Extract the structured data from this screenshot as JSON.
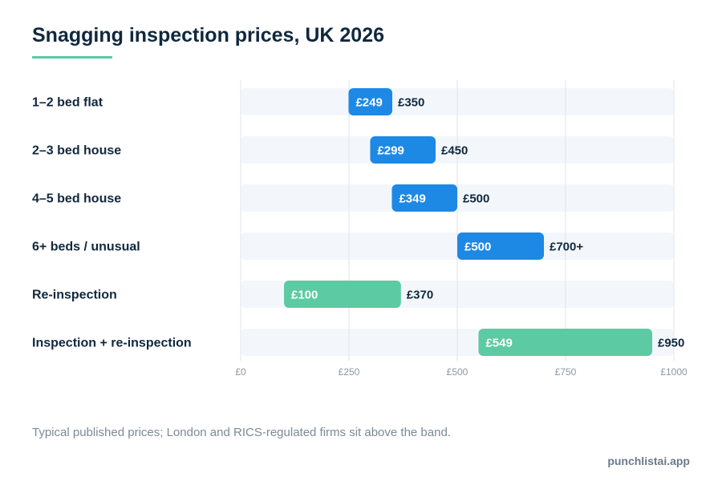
{
  "colors": {
    "blue": "#1e88e5",
    "green": "#5ccaa3",
    "track": "#f3f7fb",
    "grid": "#dbe5ee",
    "label": "#10283e",
    "tick": "#8a98a6"
  },
  "chart_data": {
    "type": "bar",
    "subtype": "range",
    "title": "Snagging inspection prices, UK 2026",
    "xlim": [
      0,
      1000
    ],
    "grid": true,
    "ticks": [
      {
        "value": 0,
        "label": "£0"
      },
      {
        "value": 250,
        "label": "£250"
      },
      {
        "value": 500,
        "label": "£500"
      },
      {
        "value": 750,
        "label": "£750"
      },
      {
        "value": 1000,
        "label": "£1000"
      }
    ],
    "rows": [
      {
        "category": "1–2 bed flat",
        "low": 249,
        "high": 350,
        "low_label": "£249",
        "high_label": "£350",
        "color": "blue"
      },
      {
        "category": "2–3 bed house",
        "low": 299,
        "high": 450,
        "low_label": "£299",
        "high_label": "£450",
        "color": "blue"
      },
      {
        "category": "4–5 bed house",
        "low": 349,
        "high": 500,
        "low_label": "£349",
        "high_label": "£500",
        "color": "blue"
      },
      {
        "category": "6+ beds / unusual",
        "low": 500,
        "high": 700,
        "low_label": "£500",
        "high_label": "£700+",
        "color": "blue"
      },
      {
        "category": "Re-inspection",
        "low": 100,
        "high": 370,
        "low_label": "£100",
        "high_label": "£370",
        "color": "green"
      },
      {
        "category": "Inspection + re-inspection",
        "low": 549,
        "high": 950,
        "low_label": "£549",
        "high_label": "£950",
        "color": "green"
      }
    ]
  },
  "footnote": "Typical published prices; London and RICS-regulated firms sit above the band.",
  "brand": "punchlistai.app"
}
